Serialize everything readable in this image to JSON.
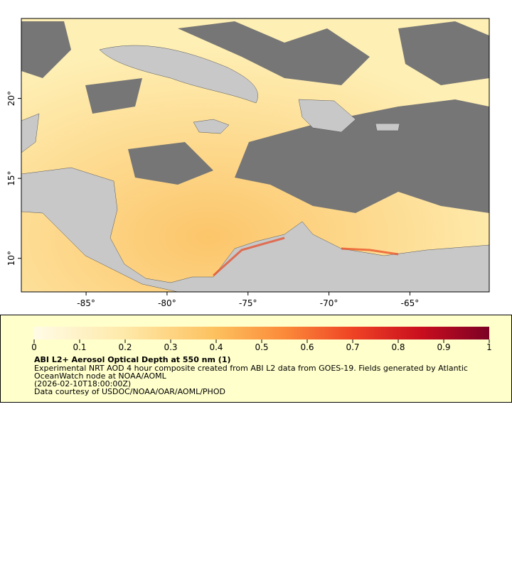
{
  "map": {
    "xlim": [
      -89,
      -60.1
    ],
    "ylim": [
      7.9,
      25
    ],
    "xticks": [
      {
        "value": -85,
        "label": "-85°"
      },
      {
        "value": -80,
        "label": "-80°"
      },
      {
        "value": -75,
        "label": "-75°"
      },
      {
        "value": -70,
        "label": "-70°"
      },
      {
        "value": -65,
        "label": "-65°"
      }
    ],
    "yticks": [
      {
        "value": 10,
        "label": "10°"
      },
      {
        "value": 15,
        "label": "15°"
      },
      {
        "value": 20,
        "label": "20°"
      }
    ]
  },
  "legend": {
    "range": [
      0,
      1
    ],
    "ticks": [
      0,
      0.1,
      0.2,
      0.3,
      0.4,
      0.5,
      0.6,
      0.7,
      0.8,
      0.9,
      1
    ],
    "title": "ABI L2+ Aerosol Optical Depth at 550 nm (1)",
    "lines": [
      "Experimental NRT AOD 4 hour composite created from ABI L2 data from GOES-19. Fields generated by Atlantic",
      "OceanWatch node at NOAA/AOML",
      "(2026-02-10T18:00:00Z)",
      "Data courtesy of USDOC/NOAA/OAR/AOML/PHOD"
    ]
  }
}
